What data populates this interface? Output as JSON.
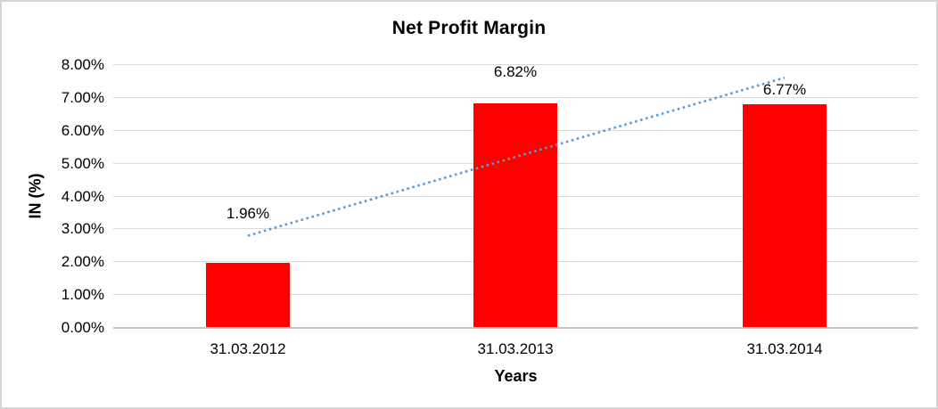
{
  "window": {
    "background_color": "#ffffff",
    "border_color": "#d6d6d6"
  },
  "chart_data": {
    "type": "bar",
    "title": "Net Profit Margin",
    "xlabel": "Years",
    "ylabel": "IN (%)",
    "categories": [
      "31.03.2012",
      "31.03.2013",
      "31.03.2014"
    ],
    "values": [
      1.96,
      6.82,
      6.77
    ],
    "value_labels": [
      "1.96%",
      "6.82%",
      "6.77%"
    ],
    "ylim": [
      0,
      8
    ],
    "ytick_step": 1,
    "ytick_labels": [
      "0.00%",
      "1.00%",
      "2.00%",
      "3.00%",
      "4.00%",
      "5.00%",
      "6.00%",
      "7.00%",
      "8.00%"
    ],
    "grid": true,
    "legend": "none",
    "bar_color": "#ff0000",
    "gridline_color": "#d9d9d9",
    "axis_line_color": "#c6c6c6",
    "text_color": "#000000",
    "trendline": {
      "type": "linear",
      "style": "dotted",
      "color": "#5b9bd5",
      "start_value_pct": 2.78,
      "end_value_pct": 7.59
    }
  }
}
